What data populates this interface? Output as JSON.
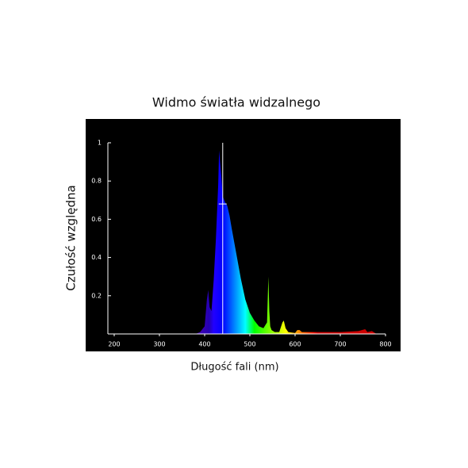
{
  "chart_data": {
    "type": "area",
    "title": "Widmo światła widzalnego",
    "xlabel": "Długość fali (nm)",
    "ylabel": "Czułość względna",
    "x": [
      380,
      390,
      400,
      405,
      408,
      411,
      415,
      420,
      425,
      430,
      432,
      434,
      437,
      440,
      445,
      450,
      455,
      460,
      470,
      480,
      490,
      500,
      510,
      520,
      530,
      538,
      541,
      543,
      545,
      548,
      555,
      565,
      572,
      575,
      579,
      585,
      600,
      605,
      610,
      615,
      640,
      700,
      740,
      755,
      760,
      770,
      780
    ],
    "values": [
      0,
      0.01,
      0.04,
      0.18,
      0.23,
      0.14,
      0.12,
      0.28,
      0.5,
      0.78,
      0.96,
      0.9,
      0.82,
      0.72,
      0.69,
      0.67,
      0.62,
      0.55,
      0.42,
      0.29,
      0.18,
      0.11,
      0.07,
      0.04,
      0.03,
      0.06,
      0.3,
      0.12,
      0.04,
      0.02,
      0.01,
      0.01,
      0.06,
      0.07,
      0.03,
      0.01,
      0.005,
      0.02,
      0.02,
      0.01,
      0.01,
      0.01,
      0.015,
      0.025,
      0.01,
      0.015,
      0
    ],
    "marker_x": 440,
    "marker_y": 0.68,
    "xlim": [
      186,
      800
    ],
    "ylim": [
      0,
      1
    ],
    "xticks": [
      200,
      300,
      400,
      500,
      600,
      700,
      800
    ],
    "yticks": [
      0.2,
      0.4,
      0.6,
      0.8,
      1
    ],
    "background": "#000000"
  }
}
